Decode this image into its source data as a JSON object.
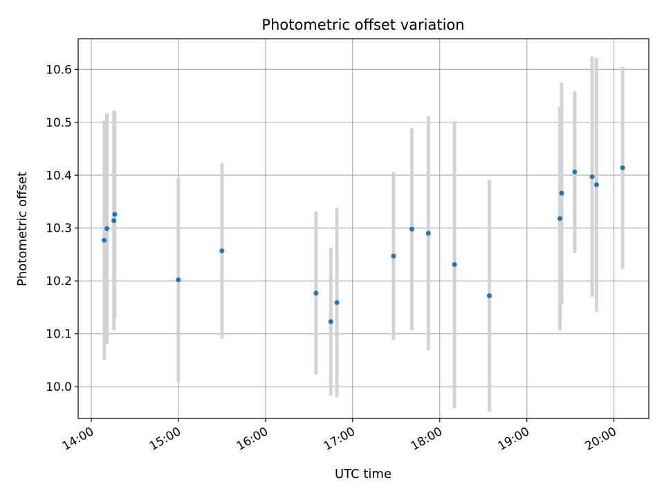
{
  "chart_data": {
    "type": "scatter",
    "title": "Photometric offset variation",
    "xlabel": "UTC time",
    "ylabel": "Photometric offset",
    "grid": true,
    "x_unit": "hours UTC",
    "xlim": [
      13.85,
      20.4
    ],
    "ylim": [
      9.94,
      10.658
    ],
    "x_ticks": [
      {
        "value": 14,
        "label": "14:00"
      },
      {
        "value": 15,
        "label": "15:00"
      },
      {
        "value": 16,
        "label": "16:00"
      },
      {
        "value": 17,
        "label": "17:00"
      },
      {
        "value": 18,
        "label": "18:00"
      },
      {
        "value": 19,
        "label": "19:00"
      },
      {
        "value": 20,
        "label": "20:00"
      }
    ],
    "y_ticks": [
      {
        "value": 10.0,
        "label": "10.0"
      },
      {
        "value": 10.1,
        "label": "10.1"
      },
      {
        "value": 10.2,
        "label": "10.2"
      },
      {
        "value": 10.3,
        "label": "10.3"
      },
      {
        "value": 10.4,
        "label": "10.4"
      },
      {
        "value": 10.5,
        "label": "10.5"
      },
      {
        "value": 10.6,
        "label": "10.6"
      }
    ],
    "point_color": "#1f77b4",
    "errorbar_color": "#d3d3d3",
    "points": [
      {
        "x": 14.15,
        "y": 10.277,
        "yerr": 0.226
      },
      {
        "x": 14.18,
        "y": 10.299,
        "yerr": 0.218
      },
      {
        "x": 14.26,
        "y": 10.314,
        "yerr": 0.207
      },
      {
        "x": 14.27,
        "y": 10.326,
        "yerr": 0.196
      },
      {
        "x": 15.0,
        "y": 10.202,
        "yerr": 0.192
      },
      {
        "x": 15.5,
        "y": 10.257,
        "yerr": 0.166
      },
      {
        "x": 16.58,
        "y": 10.177,
        "yerr": 0.154
      },
      {
        "x": 16.75,
        "y": 10.123,
        "yerr": 0.14
      },
      {
        "x": 16.82,
        "y": 10.159,
        "yerr": 0.179
      },
      {
        "x": 17.47,
        "y": 10.247,
        "yerr": 0.159
      },
      {
        "x": 17.68,
        "y": 10.298,
        "yerr": 0.191
      },
      {
        "x": 17.87,
        "y": 10.29,
        "yerr": 0.221
      },
      {
        "x": 18.17,
        "y": 10.231,
        "yerr": 0.271
      },
      {
        "x": 18.57,
        "y": 10.172,
        "yerr": 0.219
      },
      {
        "x": 19.38,
        "y": 10.318,
        "yerr": 0.211
      },
      {
        "x": 19.4,
        "y": 10.366,
        "yerr": 0.209
      },
      {
        "x": 19.55,
        "y": 10.406,
        "yerr": 0.153
      },
      {
        "x": 19.75,
        "y": 10.397,
        "yerr": 0.227
      },
      {
        "x": 19.8,
        "y": 10.382,
        "yerr": 0.24
      },
      {
        "x": 20.1,
        "y": 10.414,
        "yerr": 0.191
      }
    ]
  }
}
